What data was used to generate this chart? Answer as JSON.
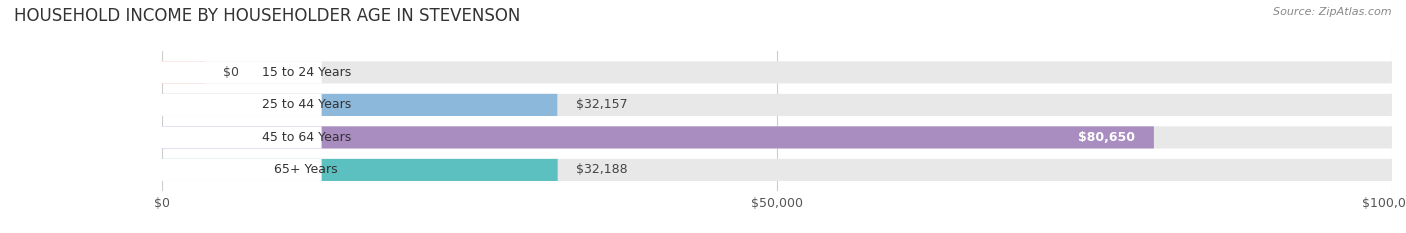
{
  "title": "HOUSEHOLD INCOME BY HOUSEHOLDER AGE IN STEVENSON",
  "source": "Source: ZipAtlas.com",
  "categories": [
    "15 to 24 Years",
    "25 to 44 Years",
    "45 to 64 Years",
    "65+ Years"
  ],
  "values": [
    0,
    32157,
    80650,
    32188
  ],
  "bar_colors": [
    "#f0a8a0",
    "#8cb8db",
    "#a98cc0",
    "#5cc0c0"
  ],
  "label_text_colors": [
    "#444444",
    "#444444",
    "#ffffff",
    "#444444"
  ],
  "xlim": [
    0,
    100000
  ],
  "xticks": [
    0,
    50000,
    100000
  ],
  "xtick_labels": [
    "$0",
    "$50,000",
    "$100,000"
  ],
  "bg_color": "#ffffff",
  "bar_bg_color": "#e8e8e8",
  "title_fontsize": 12,
  "source_fontsize": 8,
  "label_fontsize": 9,
  "category_fontsize": 9,
  "value_labels": [
    "$0",
    "$32,157",
    "$80,650",
    "$32,188"
  ]
}
